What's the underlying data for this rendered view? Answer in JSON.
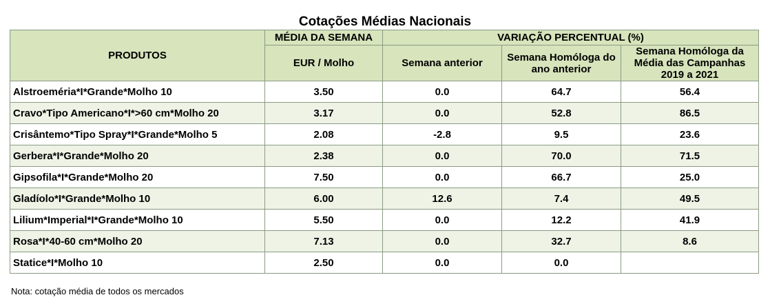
{
  "title": "Cotações Médias Nacionais",
  "headers": {
    "produtos": "PRODUTOS",
    "media_semana": "MÉDIA DA SEMANA",
    "unidade": "EUR / Molho",
    "variacao": "VARIAÇÃO PERCENTUAL (%)",
    "semana_anterior": "Semana anterior",
    "semana_homologa": "Semana Homóloga do ano anterior",
    "semana_homologa_media": "Semana Homóloga da Média das Campanhas 2019 a 2021"
  },
  "rows": [
    {
      "produto": "Alstroeméria*I*Grande*Molho 10",
      "media": "3.50",
      "sem_ant": "0.0",
      "hom_ano": "64.7",
      "hom_media": "56.4"
    },
    {
      "produto": "Cravo*Tipo Americano*I*>60 cm*Molho 20",
      "media": "3.17",
      "sem_ant": "0.0",
      "hom_ano": "52.8",
      "hom_media": "86.5"
    },
    {
      "produto": "Crisântemo*Tipo Spray*I*Grande*Molho 5",
      "media": "2.08",
      "sem_ant": "-2.8",
      "hom_ano": "9.5",
      "hom_media": "23.6"
    },
    {
      "produto": "Gerbera*I*Grande*Molho 20",
      "media": "2.38",
      "sem_ant": "0.0",
      "hom_ano": "70.0",
      "hom_media": "71.5"
    },
    {
      "produto": "Gipsofila*I*Grande*Molho 20",
      "media": "7.50",
      "sem_ant": "0.0",
      "hom_ano": "66.7",
      "hom_media": "25.0"
    },
    {
      "produto": "Gladíolo*I*Grande*Molho 10",
      "media": "6.00",
      "sem_ant": "12.6",
      "hom_ano": "7.4",
      "hom_media": "49.5"
    },
    {
      "produto": "Lilium*Imperial*I*Grande*Molho 10",
      "media": "5.50",
      "sem_ant": "0.0",
      "hom_ano": "12.2",
      "hom_media": "41.9"
    },
    {
      "produto": "Rosa*I*40-60 cm*Molho 20",
      "media": "7.13",
      "sem_ant": "0.0",
      "hom_ano": "32.7",
      "hom_media": "8.6"
    },
    {
      "produto": "Statice*I*Molho 10",
      "media": "2.50",
      "sem_ant": "0.0",
      "hom_ano": "0.0",
      "hom_media": ""
    }
  ],
  "note": "Nota: cotação média de todos os mercados"
}
